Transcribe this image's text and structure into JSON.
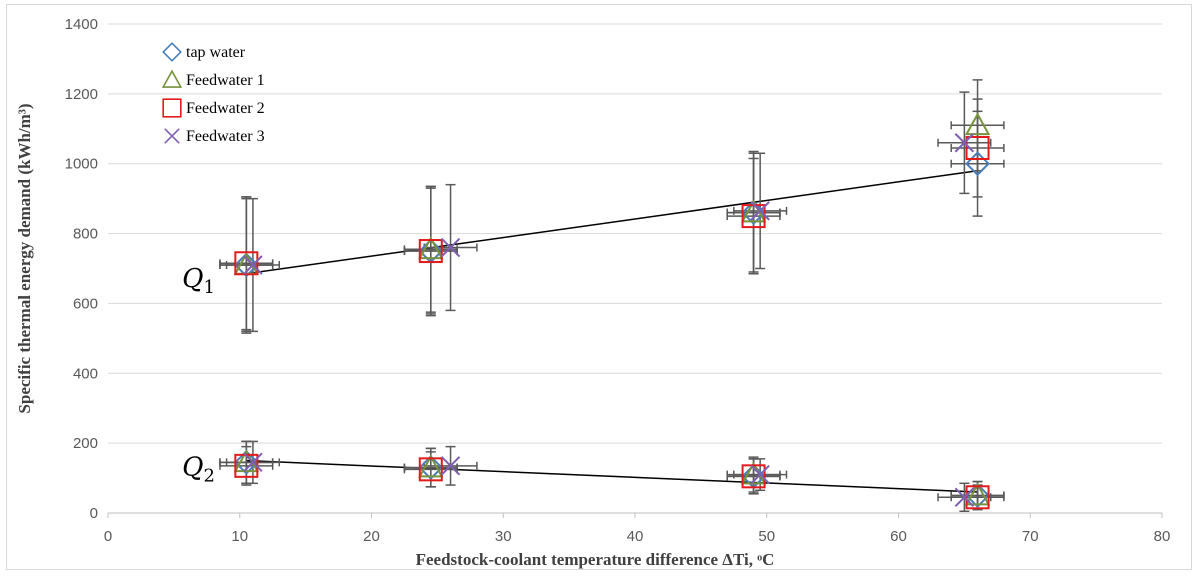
{
  "chart_data": {
    "type": "scatter",
    "xlabel": "Feedstock-coolant temperature difference ΔTi, ᵒC",
    "ylabel": "Specific thermal energy demand (kWh/m³)",
    "xlim": [
      0,
      80
    ],
    "ylim": [
      0,
      1400
    ],
    "xticks": [
      0,
      10,
      20,
      30,
      40,
      50,
      60,
      70,
      80
    ],
    "yticks": [
      0,
      200,
      400,
      600,
      800,
      1000,
      1200,
      1400
    ],
    "grid": "horizontal",
    "legend": "top-left",
    "annotations": [
      {
        "symbol": "Q",
        "sub": "1",
        "x": 3.5,
        "y": 670
      },
      {
        "symbol": "Q",
        "sub": "2",
        "x": 3.5,
        "y": 130
      }
    ],
    "series": [
      {
        "name": "tap water",
        "marker": "diamond",
        "color": "#4a7ebb",
        "points": [
          {
            "x": 10.5,
            "y": 710,
            "yerr": 195,
            "xerr": 2
          },
          {
            "x": 24.5,
            "y": 750,
            "yerr": 180,
            "xerr": 2
          },
          {
            "x": 49,
            "y": 860,
            "yerr": 170,
            "xerr": 2
          },
          {
            "x": 66,
            "y": 1000,
            "yerr": 150,
            "xerr": 2
          },
          {
            "x": 10.5,
            "y": 145,
            "yerr": 60,
            "xerr": 2
          },
          {
            "x": 24.5,
            "y": 130,
            "yerr": 55,
            "xerr": 2
          },
          {
            "x": 49,
            "y": 105,
            "yerr": 50,
            "xerr": 2
          },
          {
            "x": 66,
            "y": 50,
            "yerr": 40,
            "xerr": 2
          }
        ]
      },
      {
        "name": "Feedwater 1",
        "marker": "triangle",
        "color": "#77933c",
        "points": [
          {
            "x": 10.5,
            "y": 710,
            "yerr": 190,
            "xerr": 2
          },
          {
            "x": 24.5,
            "y": 755,
            "yerr": 180,
            "xerr": 2
          },
          {
            "x": 49,
            "y": 860,
            "yerr": 175,
            "xerr": 2
          },
          {
            "x": 66,
            "y": 1110,
            "yerr": 130,
            "xerr": 2
          },
          {
            "x": 10.5,
            "y": 145,
            "yerr": 60,
            "xerr": 2
          },
          {
            "x": 24.5,
            "y": 130,
            "yerr": 55,
            "xerr": 2
          },
          {
            "x": 49,
            "y": 110,
            "yerr": 50,
            "xerr": 2
          },
          {
            "x": 66,
            "y": 50,
            "yerr": 40,
            "xerr": 2
          }
        ]
      },
      {
        "name": "Feedwater 2",
        "marker": "square",
        "color": "#e31a1c",
        "points": [
          {
            "x": 10.5,
            "y": 715,
            "yerr": 190,
            "xerr": 2
          },
          {
            "x": 24.5,
            "y": 750,
            "yerr": 185,
            "xerr": 2
          },
          {
            "x": 49,
            "y": 850,
            "yerr": 165,
            "xerr": 2
          },
          {
            "x": 66,
            "y": 1045,
            "yerr": 140,
            "xerr": 2
          },
          {
            "x": 10.5,
            "y": 135,
            "yerr": 55,
            "xerr": 2
          },
          {
            "x": 24.5,
            "y": 125,
            "yerr": 50,
            "xerr": 2
          },
          {
            "x": 49,
            "y": 105,
            "yerr": 50,
            "xerr": 2
          },
          {
            "x": 66,
            "y": 45,
            "yerr": 35,
            "xerr": 2
          }
        ]
      },
      {
        "name": "Feedwater 3",
        "marker": "x",
        "color": "#7f5fb0",
        "points": [
          {
            "x": 11,
            "y": 710,
            "yerr": 190,
            "xerr": 2
          },
          {
            "x": 26,
            "y": 760,
            "yerr": 180,
            "xerr": 2
          },
          {
            "x": 49.5,
            "y": 865,
            "yerr": 165,
            "xerr": 2
          },
          {
            "x": 65,
            "y": 1060,
            "yerr": 145,
            "xerr": 2
          },
          {
            "x": 11,
            "y": 145,
            "yerr": 60,
            "xerr": 2
          },
          {
            "x": 26,
            "y": 135,
            "yerr": 55,
            "xerr": 2
          },
          {
            "x": 49.5,
            "y": 110,
            "yerr": 45,
            "xerr": 2
          },
          {
            "x": 65,
            "y": 45,
            "yerr": 40,
            "xerr": 2
          }
        ]
      }
    ],
    "trendlines": [
      {
        "label": "Q1",
        "x": [
          10.5,
          66
        ],
        "y": [
          685,
          980
        ],
        "color": "#000000"
      },
      {
        "label": "Q2",
        "x": [
          10.5,
          66
        ],
        "y": [
          150,
          60
        ],
        "color": "#000000"
      }
    ]
  }
}
